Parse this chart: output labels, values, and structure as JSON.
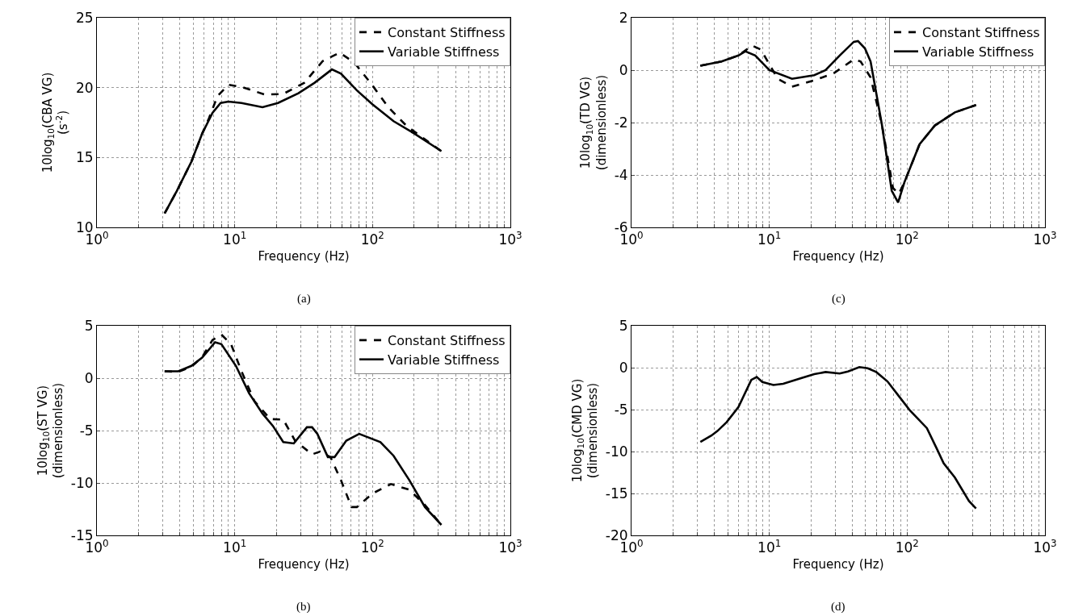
{
  "chart_data": [
    {
      "type": "line",
      "xlabel": "Frequency (Hz)",
      "ylabel": "10log$_{10}$(CBA VG)\n(s$^{-2}$)",
      "annotations": [
        "(a)"
      ],
      "log": "x",
      "grid": true,
      "legend": "top right",
      "xlim": [
        1,
        1000
      ],
      "ylim": [
        10,
        25
      ],
      "yticks": [
        10,
        15,
        20,
        25
      ],
      "xticks": [
        {
          "value": 1,
          "label": "10$^{0}$"
        },
        {
          "value": 2,
          "label": null
        },
        {
          "value": 3,
          "label": null
        },
        {
          "value": 4,
          "label": null
        },
        {
          "value": 5,
          "label": null
        },
        {
          "value": 6,
          "label": null
        },
        {
          "value": 7,
          "label": null
        },
        {
          "value": 8,
          "label": null
        },
        {
          "value": 9,
          "label": null
        },
        {
          "value": 10,
          "label": "10$^{1}$"
        },
        {
          "value": 20,
          "label": null
        },
        {
          "value": 30,
          "label": null
        },
        {
          "value": 40,
          "label": null
        },
        {
          "value": 50,
          "label": null
        },
        {
          "value": 60,
          "label": null
        },
        {
          "value": 70,
          "label": null
        },
        {
          "value": 80,
          "label": null
        },
        {
          "value": 90,
          "label": null
        },
        {
          "value": 100,
          "label": "10$^{2}$"
        },
        {
          "value": 200,
          "label": null
        },
        {
          "value": 300,
          "label": null
        },
        {
          "value": 400,
          "label": null
        },
        {
          "value": 500,
          "label": null
        },
        {
          "value": 600,
          "label": null
        },
        {
          "value": 700,
          "label": null
        },
        {
          "value": 800,
          "label": null
        },
        {
          "value": 900,
          "label": null
        },
        {
          "value": 1000,
          "label": "10$^{3}$"
        }
      ],
      "series": [
        {
          "name": "Constant Stiffness",
          "color": "#000000",
          "line_style": "dashed",
          "x": [
            3.1,
            3.8,
            4.85,
            5.8,
            6.5,
            7.5,
            9,
            11.2,
            16.6,
            22.5,
            32,
            43.5,
            57.7,
            73.6,
            100,
            130,
            177,
            240,
            316
          ],
          "values": [
            11.0,
            12.6,
            14.7,
            16.7,
            17.8,
            19.4,
            20.2,
            20.05,
            19.5,
            19.55,
            20.35,
            21.9,
            22.5,
            21.8,
            20.15,
            18.6,
            17.25,
            16.3,
            15.45
          ]
        },
        {
          "name": "Variable Stiffness",
          "color": "#000000",
          "line_style": "solid",
          "x": [
            3.1,
            3.8,
            4.85,
            5.8,
            6.9,
            7.9,
            9,
            11.2,
            15.9,
            20.6,
            29,
            38,
            50.7,
            59,
            77,
            100,
            142,
            202,
            316
          ],
          "values": [
            11.0,
            12.6,
            14.7,
            16.7,
            18.2,
            18.9,
            19.0,
            18.9,
            18.6,
            18.9,
            19.6,
            20.35,
            21.3,
            21.0,
            19.8,
            18.8,
            17.6,
            16.7,
            15.45
          ]
        }
      ]
    },
    {
      "type": "line",
      "xlabel": "Frequency (Hz)",
      "ylabel": "10log$_{10}$(TD VG)\n(dimensionless)",
      "annotations": [
        "(c)"
      ],
      "log": "x",
      "grid": true,
      "legend": "top right",
      "xlim": [
        1,
        1000
      ],
      "ylim": [
        -6,
        2
      ],
      "yticks": [
        -6,
        -4,
        -2,
        0,
        2
      ],
      "xticks": [
        {
          "value": 1,
          "label": "10$^{0}$"
        },
        {
          "value": 2,
          "label": null
        },
        {
          "value": 3,
          "label": null
        },
        {
          "value": 4,
          "label": null
        },
        {
          "value": 5,
          "label": null
        },
        {
          "value": 6,
          "label": null
        },
        {
          "value": 7,
          "label": null
        },
        {
          "value": 8,
          "label": null
        },
        {
          "value": 9,
          "label": null
        },
        {
          "value": 10,
          "label": "10$^{1}$"
        },
        {
          "value": 20,
          "label": null
        },
        {
          "value": 30,
          "label": null
        },
        {
          "value": 40,
          "label": null
        },
        {
          "value": 50,
          "label": null
        },
        {
          "value": 60,
          "label": null
        },
        {
          "value": 70,
          "label": null
        },
        {
          "value": 80,
          "label": null
        },
        {
          "value": 90,
          "label": null
        },
        {
          "value": 100,
          "label": "10$^{2}$"
        },
        {
          "value": 200,
          "label": null
        },
        {
          "value": 300,
          "label": null
        },
        {
          "value": 400,
          "label": null
        },
        {
          "value": 500,
          "label": null
        },
        {
          "value": 600,
          "label": null
        },
        {
          "value": 700,
          "label": null
        },
        {
          "value": 800,
          "label": null
        },
        {
          "value": 900,
          "label": null
        },
        {
          "value": 1000,
          "label": "10$^{3}$"
        }
      ],
      "series": [
        {
          "name": "Constant Stiffness",
          "color": "#000000",
          "line_style": "dashed",
          "x": [
            3.16,
            4.5,
            5.97,
            7.5,
            8.7,
            11.5,
            14.6,
            21.2,
            29.5,
            41,
            46,
            54.3,
            65.5,
            79,
            87,
            95.5,
            123,
            159,
            222,
            316
          ],
          "values": [
            0.17,
            0.33,
            0.56,
            0.94,
            0.78,
            -0.33,
            -0.63,
            -0.39,
            -0.11,
            0.41,
            0.33,
            -0.28,
            -2.06,
            -4.5,
            -4.72,
            -4.28,
            -2.83,
            -2.11,
            -1.61,
            -1.33
          ]
        },
        {
          "name": "Variable Stiffness",
          "color": "#000000",
          "line_style": "solid",
          "x": [
            3.16,
            4.5,
            5.97,
            6.7,
            7.9,
            10,
            14.6,
            21.2,
            25.6,
            32.4,
            41,
            44,
            49.4,
            54.3,
            65.5,
            77.3,
            86,
            95.5,
            123,
            159,
            222,
            316
          ],
          "values": [
            0.17,
            0.33,
            0.56,
            0.72,
            0.56,
            0,
            -0.33,
            -0.19,
            0,
            0.56,
            1.08,
            1.11,
            0.83,
            0.33,
            -2.06,
            -4.6,
            -5.05,
            -4.28,
            -2.83,
            -2.11,
            -1.61,
            -1.33
          ]
        }
      ]
    },
    {
      "type": "line",
      "xlabel": "Frequency (Hz)",
      "ylabel": "10log$_{10}$(ST VG)\n(dimensionless)",
      "annotations": [
        "(b)"
      ],
      "log": "x",
      "grid": true,
      "legend": "top right",
      "xlim": [
        1,
        1000
      ],
      "ylim": [
        -15,
        5
      ],
      "yticks": [
        -15,
        -10,
        -5,
        0,
        5
      ],
      "xticks": [
        {
          "value": 1,
          "label": "10$^{0}$"
        },
        {
          "value": 2,
          "label": null
        },
        {
          "value": 3,
          "label": null
        },
        {
          "value": 4,
          "label": null
        },
        {
          "value": 5,
          "label": null
        },
        {
          "value": 6,
          "label": null
        },
        {
          "value": 7,
          "label": null
        },
        {
          "value": 8,
          "label": null
        },
        {
          "value": 9,
          "label": null
        },
        {
          "value": 10,
          "label": "10$^{1}$"
        },
        {
          "value": 20,
          "label": null
        },
        {
          "value": 30,
          "label": null
        },
        {
          "value": 40,
          "label": null
        },
        {
          "value": 50,
          "label": null
        },
        {
          "value": 60,
          "label": null
        },
        {
          "value": 70,
          "label": null
        },
        {
          "value": 80,
          "label": null
        },
        {
          "value": 90,
          "label": null
        },
        {
          "value": 100,
          "label": "10$^{2}$"
        },
        {
          "value": 200,
          "label": null
        },
        {
          "value": 300,
          "label": null
        },
        {
          "value": 400,
          "label": null
        },
        {
          "value": 500,
          "label": null
        },
        {
          "value": 600,
          "label": null
        },
        {
          "value": 700,
          "label": null
        },
        {
          "value": 800,
          "label": null
        },
        {
          "value": 900,
          "label": null
        },
        {
          "value": 1000,
          "label": "10$^{3}$"
        }
      ],
      "series": [
        {
          "name": "Constant Stiffness",
          "color": "#000000",
          "line_style": "dashed",
          "x": [
            3.1,
            3.9,
            4.85,
            5.8,
            6.9,
            8.0,
            9.4,
            11.2,
            13.9,
            18.1,
            22.5,
            27.4,
            36.4,
            41.6,
            49.5,
            59,
            70.4,
            77,
            100,
            136,
            185,
            240,
            316
          ],
          "values": [
            0.65,
            0.6,
            1.1,
            2.0,
            3.64,
            4.16,
            3.25,
            0.65,
            -2.2,
            -3.9,
            -3.95,
            -5.97,
            -7.27,
            -7.01,
            -7.53,
            -9.74,
            -12.3,
            -12.3,
            -11.0,
            -10.1,
            -10.65,
            -12.1,
            -14.0
          ]
        },
        {
          "name": "Variable Stiffness",
          "color": "#000000",
          "line_style": "solid",
          "x": [
            3.1,
            3.9,
            4.85,
            5.8,
            7.2,
            8.0,
            10.2,
            12.7,
            15.9,
            18.9,
            22.5,
            26.8,
            33.4,
            36.4,
            39.8,
            47.4,
            53,
            64.5,
            80,
            114,
            142,
            185,
            240,
            316
          ],
          "values": [
            0.65,
            0.65,
            1.17,
            1.95,
            3.43,
            3.25,
            1.17,
            -1.43,
            -3.38,
            -4.55,
            -6.1,
            -6.23,
            -4.68,
            -4.68,
            -5.32,
            -7.53,
            -7.53,
            -5.97,
            -5.32,
            -6.1,
            -7.4,
            -9.74,
            -12.3,
            -14.0
          ]
        }
      ]
    },
    {
      "type": "line",
      "xlabel": "Frequency (Hz)",
      "ylabel": "10log$_{10}$(CMD VG)\n(dimensionless)",
      "annotations": [
        "(d)"
      ],
      "log": "x",
      "grid": true,
      "xlim": [
        1,
        1000
      ],
      "ylim": [
        -20,
        5
      ],
      "yticks": [
        -20,
        -15,
        -10,
        -5,
        0,
        5
      ],
      "xticks": [
        {
          "value": 1,
          "label": "10$^{0}$"
        },
        {
          "value": 2,
          "label": null
        },
        {
          "value": 3,
          "label": null
        },
        {
          "value": 4,
          "label": null
        },
        {
          "value": 5,
          "label": null
        },
        {
          "value": 6,
          "label": null
        },
        {
          "value": 7,
          "label": null
        },
        {
          "value": 8,
          "label": null
        },
        {
          "value": 9,
          "label": null
        },
        {
          "value": 10,
          "label": "10$^{1}$"
        },
        {
          "value": 20,
          "label": null
        },
        {
          "value": 30,
          "label": null
        },
        {
          "value": 40,
          "label": null
        },
        {
          "value": 50,
          "label": null
        },
        {
          "value": 60,
          "label": null
        },
        {
          "value": 70,
          "label": null
        },
        {
          "value": 80,
          "label": null
        },
        {
          "value": 90,
          "label": null
        },
        {
          "value": 100,
          "label": "10$^{2}$"
        },
        {
          "value": 200,
          "label": null
        },
        {
          "value": 300,
          "label": null
        },
        {
          "value": 400,
          "label": null
        },
        {
          "value": 500,
          "label": null
        },
        {
          "value": 600,
          "label": null
        },
        {
          "value": 700,
          "label": null
        },
        {
          "value": 800,
          "label": null
        },
        {
          "value": 900,
          "label": null
        },
        {
          "value": 1000,
          "label": "10$^{3}$"
        }
      ],
      "series": [
        {
          "color": "#000000",
          "line_style": "solid",
          "x": [
            3.16,
            3.8,
            4.2,
            4.9,
            5.97,
            7.4,
            8.1,
            8.9,
            10.7,
            12.6,
            17.2,
            21.2,
            25.6,
            32.4,
            37.2,
            45,
            51.8,
            59.7,
            72,
            86.9,
            105,
            139,
            164,
            184,
            222,
            281,
            316
          ],
          "values": [
            -8.85,
            -8.1,
            -7.56,
            -6.5,
            -4.7,
            -1.46,
            -1.11,
            -1.71,
            -2.06,
            -1.92,
            -1.22,
            -0.77,
            -0.52,
            -0.7,
            -0.45,
            0.07,
            -0.07,
            -0.52,
            -1.64,
            -3.38,
            -5.12,
            -7.2,
            -9.65,
            -11.4,
            -13.1,
            -15.9,
            -16.8
          ]
        }
      ]
    }
  ]
}
